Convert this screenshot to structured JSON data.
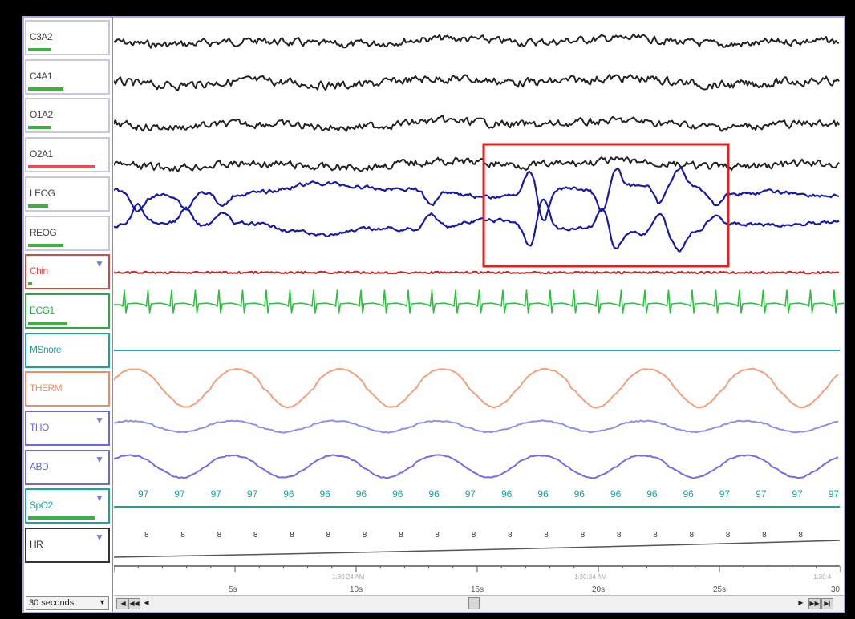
{
  "channels": [
    {
      "name": "C3A2",
      "label_color": "#444444",
      "bar_color": "#3cb043",
      "bar_level": 0.3,
      "trace_color": "#222222",
      "has_dropdown": false
    },
    {
      "name": "C4A1",
      "label_color": "#444444",
      "bar_color": "#3cb043",
      "bar_level": 0.45,
      "trace_color": "#222222",
      "has_dropdown": false
    },
    {
      "name": "O1A2",
      "label_color": "#444444",
      "bar_color": "#3cb043",
      "bar_level": 0.3,
      "trace_color": "#222222",
      "has_dropdown": false
    },
    {
      "name": "O2A1",
      "label_color": "#444444",
      "bar_color": "#e05050",
      "bar_level": 0.85,
      "trace_color": "#222222",
      "has_dropdown": false
    },
    {
      "name": "LEOG",
      "label_color": "#444444",
      "bar_color": "#3cb043",
      "bar_level": 0.25,
      "trace_color": "#1a1aa0",
      "has_dropdown": false
    },
    {
      "name": "REOG",
      "label_color": "#444444",
      "bar_color": "#3cb043",
      "bar_level": 0.45,
      "trace_color": "#1a1aa0",
      "has_dropdown": false
    },
    {
      "name": "Chin",
      "label_color": "#d04a4a",
      "bar_color": "#3cb043",
      "bar_level": 0.05,
      "trace_color": "#c02a2a",
      "has_dropdown": true
    },
    {
      "name": "ECG1",
      "label_color": "#2ea84a",
      "bar_color": "#3cb043",
      "bar_level": 0.5,
      "trace_color": "#2cc040",
      "has_dropdown": false
    },
    {
      "name": "MSnore",
      "label_color": "#1aa59a",
      "bar_color": "#3cb043",
      "bar_level": 0.0,
      "trace_color": "#1aa5b5",
      "has_dropdown": false
    },
    {
      "name": "THERM",
      "label_color": "#f08a6a",
      "bar_color": "#3cb043",
      "bar_level": 0.0,
      "trace_color": "#f0a080",
      "has_dropdown": false
    },
    {
      "name": "THO",
      "label_color": "#6a6ad8",
      "bar_color": "#3cb043",
      "bar_level": 0.0,
      "trace_color": "#8f8fe8",
      "has_dropdown": true
    },
    {
      "name": "ABD",
      "label_color": "#6a6ad8",
      "bar_color": "#3cb043",
      "bar_level": 0.0,
      "trace_color": "#7a6ae0",
      "has_dropdown": true
    },
    {
      "name": "SpO2",
      "label_color": "#1aa59a",
      "bar_color": "#3cb043",
      "bar_level": 0.85,
      "trace_color": "#1aa59a",
      "has_dropdown": true
    },
    {
      "name": "HR",
      "label_color": "#333333",
      "bar_color": "#3cb043",
      "bar_level": 0.0,
      "trace_color": "#555555",
      "has_dropdown": true
    }
  ],
  "spo2_values": [
    97,
    97,
    97,
    97,
    96,
    96,
    96,
    96,
    96,
    97,
    96,
    96,
    96,
    96,
    96,
    96,
    97,
    97,
    97,
    97
  ],
  "hr_values": [
    "8",
    "8",
    "8",
    "8",
    "8",
    "8",
    "8",
    "8",
    "8",
    "8",
    "8",
    "8",
    "8",
    "8",
    "8",
    "8",
    "8",
    "8",
    "8",
    ""
  ],
  "time_axis": {
    "ticks": [
      "5s",
      "10s",
      "15s",
      "20s",
      "25s",
      "30"
    ],
    "clock_labels": [
      "1:30:24 AM",
      "1:30:34 AM",
      "1:30:4"
    ]
  },
  "timebase": "30 seconds",
  "highlight_color": "#e02020"
}
